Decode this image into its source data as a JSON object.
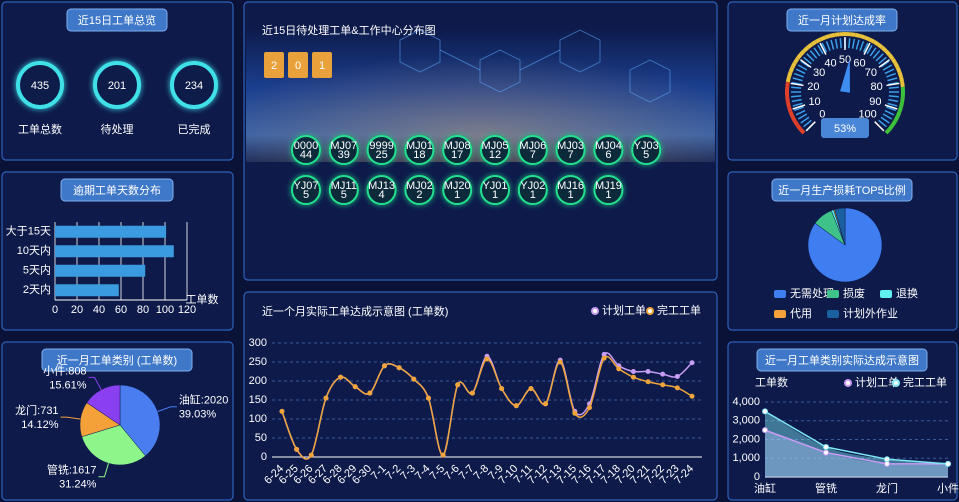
{
  "overview": {
    "title": "近15日工单总览",
    "stats": [
      {
        "label": "工单总数",
        "value": 435
      },
      {
        "label": "待处理",
        "value": 201
      },
      {
        "label": "已完成",
        "value": 234
      }
    ]
  },
  "distribution": {
    "title": "近15日待处理工单&工作中心分布图",
    "pending_digits": [
      "2",
      "0",
      "1"
    ],
    "nodes": [
      {
        "code": "0000",
        "count": 44
      },
      {
        "code": "MJ07",
        "count": 39
      },
      {
        "code": "9999",
        "count": 25
      },
      {
        "code": "MJ01",
        "count": 18
      },
      {
        "code": "MJ08",
        "count": 17
      },
      {
        "code": "MJ05",
        "count": 12
      },
      {
        "code": "MJ06",
        "count": 7
      },
      {
        "code": "MJ03",
        "count": 7
      },
      {
        "code": "MJ04",
        "count": 6
      },
      {
        "code": "YJ03",
        "count": 5
      },
      {
        "code": "YJ07",
        "count": 5
      },
      {
        "code": "MJ11",
        "count": 5
      },
      {
        "code": "MJ13",
        "count": 4
      },
      {
        "code": "MJ02",
        "count": 2
      },
      {
        "code": "MJ20",
        "count": 1
      },
      {
        "code": "YJ01",
        "count": 1
      },
      {
        "code": "YJ02",
        "count": 1
      },
      {
        "code": "MJ16",
        "count": 1
      },
      {
        "code": "MJ19",
        "count": 1
      }
    ]
  },
  "chart_data": [
    {
      "type": "hbar",
      "title": "逾期工单天数分布",
      "categories": [
        "大于15天",
        "10天内",
        "5天内",
        "2天内"
      ],
      "values": [
        101,
        108,
        82,
        58
      ],
      "color": "#3a9be0",
      "xlim": [
        0,
        120
      ],
      "xticks": [
        0,
        20,
        40,
        60,
        80,
        100,
        120
      ],
      "xlabel": "工单数",
      "grid": true
    },
    {
      "type": "pie",
      "title": "近一月工单类别 (工单数)",
      "values": [
        2020,
        1617,
        731,
        808
      ],
      "value_labels": [
        "油缸:2020",
        "管铣:1617",
        "龙门:731",
        "小件:808"
      ],
      "percent_labels": [
        "39.03%",
        "31.24%",
        "14.12%",
        "15.61%"
      ],
      "colors": [
        "#4a7ef0",
        "#8ef58a",
        "#f4a13a",
        "#8a3ff0"
      ]
    },
    {
      "type": "line",
      "title": "近一个月实际工单达成示意图 (工单数)",
      "categories": [
        "6-24",
        "6-25",
        "6-26",
        "6-27",
        "6-28",
        "6-29",
        "6-30",
        "7-1",
        "7-2",
        "7-3",
        "7-4",
        "7-5",
        "7-6",
        "7-7",
        "7-8",
        "7-9",
        "7-10",
        "7-11",
        "7-12",
        "7-13",
        "7-15",
        "7-16",
        "7-17",
        "7-18",
        "7-20",
        "7-21",
        "7-22",
        "7-23",
        "7-24"
      ],
      "series": [
        {
          "name": "计划工单",
          "color": "#c79cf5",
          "values": [
            120,
            20,
            5,
            155,
            210,
            185,
            168,
            240,
            235,
            205,
            155,
            5,
            190,
            168,
            265,
            180,
            135,
            180,
            140,
            255,
            120,
            140,
            270,
            240,
            225,
            225,
            218,
            212,
            248
          ]
        },
        {
          "name": "完工工单",
          "color": "#f0a53a",
          "values": [
            120,
            20,
            5,
            155,
            210,
            185,
            168,
            240,
            235,
            205,
            155,
            5,
            190,
            168,
            258,
            180,
            135,
            180,
            140,
            250,
            115,
            130,
            260,
            232,
            210,
            198,
            190,
            182,
            160
          ]
        }
      ],
      "ylim": [
        0,
        300
      ],
      "yticks": [
        0,
        50,
        100,
        150,
        200,
        250,
        300
      ],
      "grid": true,
      "legend": "top-right"
    },
    {
      "type": "gauge",
      "title": "近一月计划达成率",
      "value": 53,
      "value_label": "53%",
      "ylim": [
        0,
        100
      ],
      "yticks": [
        0,
        10,
        20,
        30,
        40,
        50,
        60,
        70,
        80,
        90,
        100
      ],
      "color": "#3d8ef0"
    },
    {
      "type": "pie",
      "title": "近一月生产损耗TOP5比例",
      "categories": [
        "无需处理",
        "损废",
        "退换",
        "代用",
        "计划外作业"
      ],
      "values": [
        85,
        9,
        1,
        0.5,
        4.5
      ],
      "colors": [
        "#3f7ef0",
        "#3ec28a",
        "#5ff0f0",
        "#f4a13a",
        "#1a5fa0"
      ],
      "legend": "bottom"
    },
    {
      "type": "area",
      "title": "近一月工单类别实际达成示意图",
      "ylabel": "工单数",
      "categories": [
        "油缸",
        "管铣",
        "龙门",
        "小件"
      ],
      "series": [
        {
          "name": "计划工单",
          "color": "#c79cf5",
          "values": [
            2500,
            1300,
            700,
            700
          ]
        },
        {
          "name": "完工工单",
          "color": "#7fe9f5",
          "values": [
            3500,
            1600,
            950,
            700
          ]
        }
      ],
      "ylim": [
        0,
        4000
      ],
      "yticks": [
        0,
        {
          "value": 1000,
          "label": "1,000"
        },
        {
          "value": 2000,
          "label": "2,000"
        },
        {
          "value": 3000,
          "label": "3,000"
        },
        {
          "value": 4000,
          "label": "4,000"
        }
      ],
      "grid": true,
      "legend": "top-right"
    }
  ]
}
